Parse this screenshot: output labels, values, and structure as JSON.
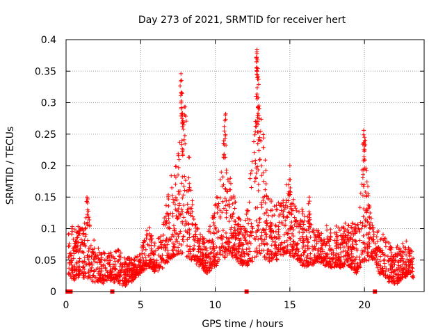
{
  "chart_data": {
    "type": "scatter",
    "title": "Day 273 of 2021, SRMTID for receiver hert",
    "xlabel": "GPS time / hours",
    "ylabel": "SRMTID / TECUs",
    "xlim": [
      0,
      24
    ],
    "ylim": [
      0,
      0.4
    ],
    "xticks": [
      0,
      5,
      10,
      15,
      20
    ],
    "xtick_labels": [
      "0",
      "5",
      "10",
      "15",
      "20"
    ],
    "yticks": [
      0,
      0.05,
      0.1,
      0.15,
      0.2,
      0.25,
      0.3,
      0.35,
      0.4
    ],
    "ytick_labels": [
      "0",
      "0.05",
      "0.1",
      "0.15",
      "0.2",
      "0.25",
      "0.3",
      "0.35",
      "0.4"
    ],
    "grid": true,
    "marker": "+",
    "color": "#ff0000",
    "zero_markers_x": [
      0.1,
      0.2,
      0.3,
      3.1,
      12.1,
      20.7
    ],
    "envelope": {
      "x": [
        0,
        0.5,
        1,
        1.5,
        2,
        2.5,
        3,
        3.5,
        4,
        4.5,
        5,
        5.5,
        6,
        6.5,
        7,
        7.5,
        8,
        8.5,
        9,
        9.5,
        10,
        10.5,
        11,
        11.5,
        12,
        12.5,
        13,
        13.5,
        14,
        14.5,
        15,
        15.5,
        16,
        16.5,
        17,
        17.5,
        18,
        18.5,
        19,
        19.5,
        20,
        20.5,
        21,
        21.5,
        22,
        22.5,
        23,
        23.3
      ],
      "low": [
        0.03,
        0.02,
        0.025,
        0.02,
        0.015,
        0.015,
        0.02,
        0.015,
        0.01,
        0.02,
        0.03,
        0.04,
        0.03,
        0.04,
        0.05,
        0.06,
        0.06,
        0.05,
        0.04,
        0.03,
        0.04,
        0.05,
        0.06,
        0.05,
        0.04,
        0.05,
        0.06,
        0.05,
        0.05,
        0.06,
        0.06,
        0.05,
        0.04,
        0.04,
        0.05,
        0.04,
        0.04,
        0.04,
        0.04,
        0.03,
        0.05,
        0.05,
        0.03,
        0.02,
        0.01,
        0.02,
        0.03,
        0.02
      ],
      "high": [
        0.1,
        0.12,
        0.12,
        0.15,
        0.08,
        0.07,
        0.07,
        0.08,
        0.06,
        0.06,
        0.07,
        0.12,
        0.08,
        0.12,
        0.2,
        0.25,
        0.35,
        0.15,
        0.1,
        0.1,
        0.16,
        0.28,
        0.2,
        0.14,
        0.12,
        0.25,
        0.38,
        0.18,
        0.15,
        0.18,
        0.2,
        0.15,
        0.15,
        0.12,
        0.1,
        0.12,
        0.12,
        0.12,
        0.12,
        0.12,
        0.26,
        0.12,
        0.11,
        0.1,
        0.08,
        0.09,
        0.09,
        0.06
      ],
      "peak_values": [
        {
          "x": 7.7,
          "y": 0.346
        },
        {
          "x": 7.75,
          "y": 0.315
        },
        {
          "x": 7.8,
          "y": 0.283
        },
        {
          "x": 7.8,
          "y": 0.262
        },
        {
          "x": 10.6,
          "y": 0.262
        },
        {
          "x": 10.7,
          "y": 0.282
        },
        {
          "x": 12.8,
          "y": 0.384
        },
        {
          "x": 12.8,
          "y": 0.378
        },
        {
          "x": 12.85,
          "y": 0.354
        },
        {
          "x": 12.75,
          "y": 0.31
        },
        {
          "x": 12.9,
          "y": 0.29
        },
        {
          "x": 19.95,
          "y": 0.256
        },
        {
          "x": 20.0,
          "y": 0.245
        },
        {
          "x": 15.0,
          "y": 0.2
        },
        {
          "x": 1.4,
          "y": 0.15
        },
        {
          "x": 16.3,
          "y": 0.15
        }
      ]
    }
  }
}
